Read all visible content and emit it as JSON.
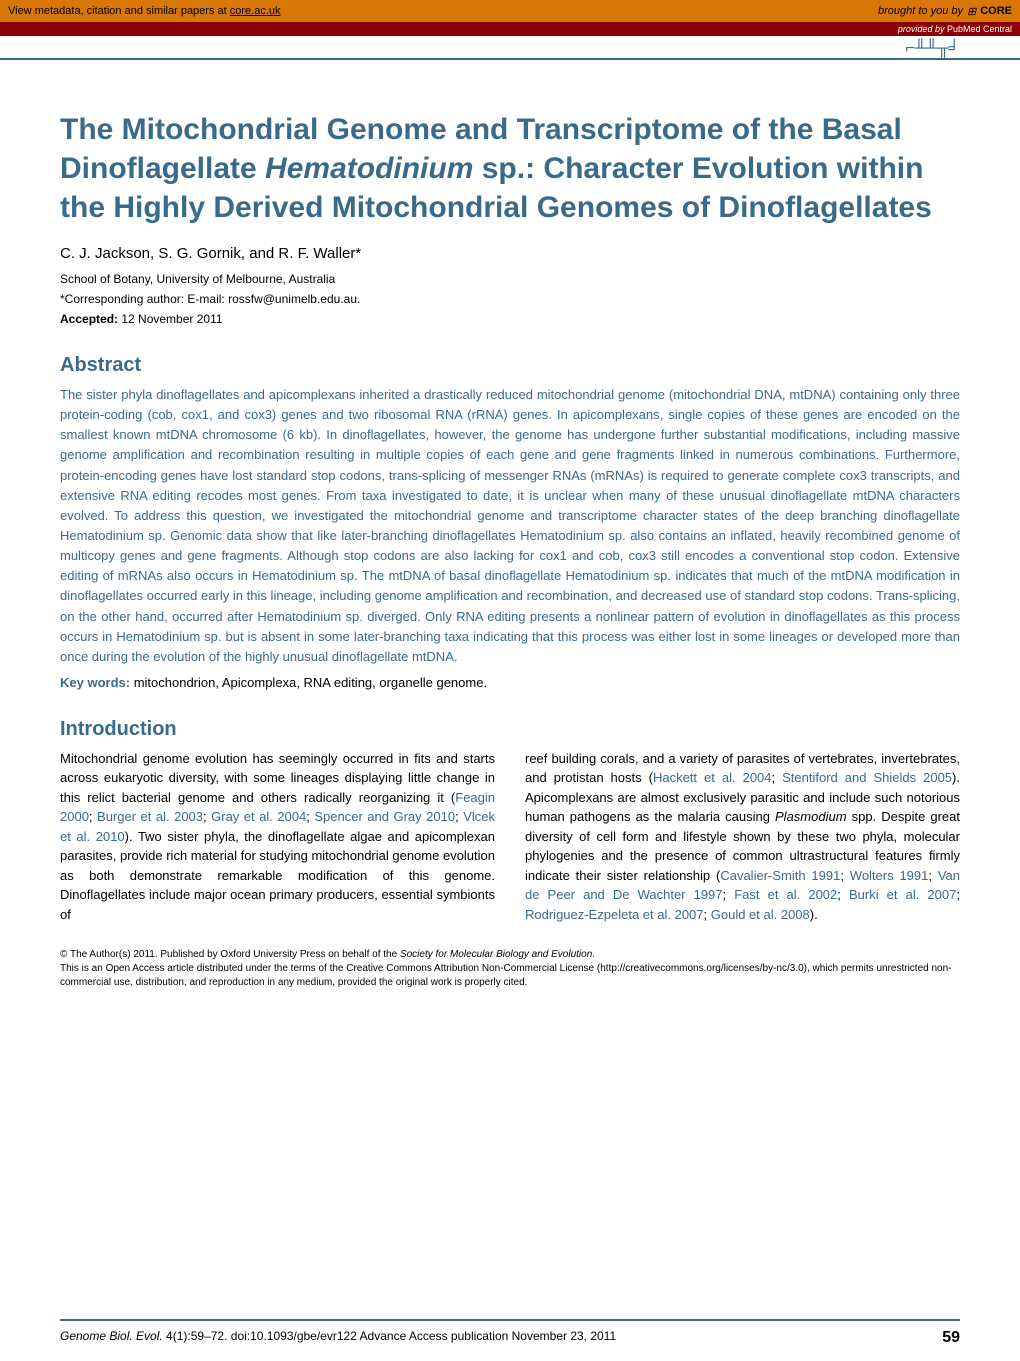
{
  "topbar": {
    "metadata_text": "View metadata, citation and similar papers at ",
    "metadata_link": "core.ac.uk",
    "brought": "brought to you by",
    "core": "CORE",
    "provided": "provided by ",
    "provider": "PubMed Central"
  },
  "title_parts": {
    "p1": "The Mitochondrial Genome and Transcriptome of the Basal Dinoflagellate ",
    "p2": "Hematodinium",
    "p3": " sp.: Character Evolution within the Highly Derived Mitochondrial Genomes of Dinoflagellates"
  },
  "authors": "C. J. Jackson, S. G. Gornik, and R. F. Waller*",
  "affiliation": "School of Botany, University of Melbourne, Australia",
  "corresponding": "*Corresponding author: E-mail: rossfw@unimelb.edu.au.",
  "accepted_label": "Accepted:",
  "accepted_date": " 12 November 2011",
  "abstract_heading": "Abstract",
  "abstract_body": "The sister phyla dinoflagellates and apicomplexans inherited a drastically reduced mitochondrial genome (mitochondrial DNA, mtDNA) containing only three protein-coding (cob, cox1, and cox3) genes and two ribosomal RNA (rRNA) genes. In apicomplexans, single copies of these genes are encoded on the smallest known mtDNA chromosome (6 kb). In dinoflagellates, however, the genome has undergone further substantial modifications, including massive genome amplification and recombination resulting in multiple copies of each gene and gene fragments linked in numerous combinations. Furthermore, protein-encoding genes have lost standard stop codons, trans-splicing of messenger RNAs (mRNAs) is required to generate complete cox3 transcripts, and extensive RNA editing recodes most genes. From taxa investigated to date, it is unclear when many of these unusual dinoflagellate mtDNA characters evolved. To address this question, we investigated the mitochondrial genome and transcriptome character states of the deep branching dinoflagellate Hematodinium sp. Genomic data show that like later-branching dinoflagellates Hematodinium sp. also contains an inflated, heavily recombined genome of multicopy genes and gene fragments. Although stop codons are also lacking for cox1 and cob, cox3 still encodes a conventional stop codon. Extensive editing of mRNAs also occurs in Hematodinium sp. The mtDNA of basal dinoflagellate Hematodinium sp. indicates that much of the mtDNA modification in dinoflagellates occurred early in this lineage, including genome amplification and recombination, and decreased use of standard stop codons. Trans-splicing, on the other hand, occurred after Hematodinium sp. diverged. Only RNA editing presents a nonlinear pattern of evolution in dinoflagellates as this process occurs in Hematodinium sp. but is absent in some later-branching taxa indicating that this process was either lost in some lineages or developed more than once during the evolution of the highly unusual dinoflagellate mtDNA.",
  "keywords_label": "Key words:",
  "keywords_text": " mitochondrion, Apicomplexa, RNA editing, organelle genome.",
  "intro_heading": "Introduction",
  "intro_col1_a": "Mitochondrial genome evolution has seemingly occurred in fits and starts across eukaryotic diversity, with some lineages displaying little change in this relict bacterial genome and others radically reorganizing it (",
  "intro_col1_cite1": "Feagin 2000",
  "intro_col1_b": "; ",
  "intro_col1_cite2": "Burger et al. 2003",
  "intro_col1_c": "; ",
  "intro_col1_cite3": "Gray et al. 2004",
  "intro_col1_d": "; ",
  "intro_col1_cite4": "Spencer and Gray 2010",
  "intro_col1_e": "; ",
  "intro_col1_cite5": "Vlcek et al. 2010",
  "intro_col1_f": "). Two sister phyla, the dinoflagellate algae and apicomplexan parasites, provide rich material for studying mitochondrial genome evolution as both demonstrate remarkable modification of this genome. Dinoflagellates include major ocean primary producers, essential symbionts of",
  "intro_col2_a": "reef building corals, and a variety of parasites of vertebrates, invertebrates, and protistan hosts (",
  "intro_col2_cite1": "Hackett et al. 2004",
  "intro_col2_b": "; ",
  "intro_col2_cite2": "Stentiford and Shields 2005",
  "intro_col2_c": "). Apicomplexans are almost exclusively parasitic and include such notorious human pathogens as the malaria causing ",
  "intro_col2_em": "Plasmodium",
  "intro_col2_d": " spp. Despite great diversity of cell form and lifestyle shown by these two phyla, molecular phylogenies and the presence of common ultrastructural features firmly indicate their sister relationship (",
  "intro_col2_cite3": "Cavalier-Smith 1991",
  "intro_col2_e": "; ",
  "intro_col2_cite4": "Wolters 1991",
  "intro_col2_f": "; ",
  "intro_col2_cite5": "Van de Peer and De Wachter 1997",
  "intro_col2_g": "; ",
  "intro_col2_cite6": "Fast et al. 2002",
  "intro_col2_h": "; ",
  "intro_col2_cite7": "Burki et al. 2007",
  "intro_col2_i": "; ",
  "intro_col2_cite8": "Rodriguez-Ezpeleta et al. 2007",
  "intro_col2_j": "; ",
  "intro_col2_cite9": "Gould et al. 2008",
  "intro_col2_k": ").",
  "license_a": "© The Author(s) 2011. Published by Oxford University Press on behalf of the ",
  "license_em": "Society for Molecular Biology and Evolution",
  "license_b": ".",
  "license_c": "This is an Open Access article distributed under the terms of the Creative Commons Attribution Non-Commercial License (http://creativecommons.org/licenses/by-nc/3.0), which permits unrestricted non-commercial use, distribution, and reproduction in any medium, provided the original work is properly cited.",
  "footer": {
    "journal": "Genome Biol. Evol.",
    "citation": " 4(1):59–72.   doi:10.1093/gbe/evr122   Advance Access publication November 23, 2011",
    "page": "59"
  },
  "colors": {
    "orange": "#d97706",
    "darkred": "#8b0000",
    "blue": "#3a6a8a"
  }
}
